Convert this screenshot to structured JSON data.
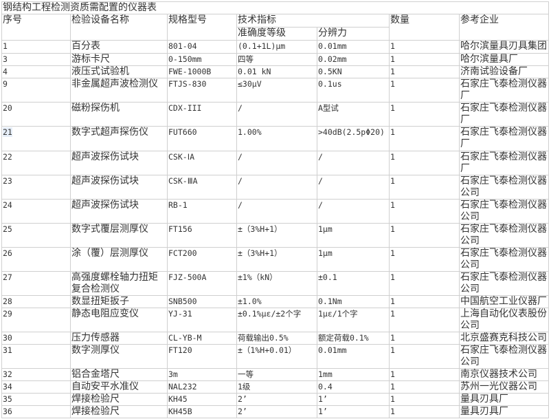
{
  "title": "钢结构工程检测资质需配置的仪器表",
  "headers": {
    "seq": "序号",
    "name": "检验设备名称",
    "model": "规格型号",
    "tech": "技术指标",
    "accuracy": "准确度等级",
    "resolution": "分辨力",
    "qty": "数量",
    "company": "参考企业"
  },
  "rows": [
    {
      "seq": "1",
      "name": "百分表",
      "model": "801-04",
      "accuracy": "(0.1+1L)μm",
      "resolution": "0.01mm",
      "qty": "1",
      "company": "哈尔滨量具刃具集团",
      "h": 18
    },
    {
      "seq": "3",
      "name": "游标卡尺",
      "model": "0-150mm",
      "accuracy": "四等",
      "resolution": "0.02mm",
      "qty": "1",
      "company": "哈尔滨量具厂",
      "h": 17
    },
    {
      "seq": "4",
      "name": "液压式试验机",
      "model": "FWE-1000B",
      "accuracy": "0.01 kN",
      "resolution": "0.5KN",
      "qty": "1",
      "company": "济南试验设备厂",
      "h": 17
    },
    {
      "seq": "9",
      "name": "非金属超声波检测仪",
      "model": "FTJS-830",
      "accuracy": "≤30μV",
      "resolution": "0.1us",
      "qty": "1",
      "company": "石家庄飞泰检测仪器厂",
      "h": 33
    },
    {
      "seq": "20",
      "name": "磁粉探伤机",
      "model": "CDX-III",
      "accuracy": "/",
      "resolution": "A型试",
      "qty": "1",
      "company": "石家庄飞泰检测仪器厂",
      "h": 33
    },
    {
      "seq": "21",
      "name": "数字式超声探伤仪",
      "model": "FUT660",
      "accuracy": "1.00%",
      "resolution": ">40dB(2.5pΦ20)",
      "qty": "1",
      "company": "石家庄飞泰检测仪器厂",
      "h": 35,
      "highlight": true
    },
    {
      "seq": "22",
      "name": "超声波探伤试块",
      "model": "CSK-ⅠA",
      "accuracy": "/",
      "resolution": "/",
      "qty": "1",
      "company": "石家庄飞泰检测仪器厂",
      "h": 34
    },
    {
      "seq": "23",
      "name": "超声波探伤试块",
      "model": "CSK-ⅢA",
      "accuracy": "/",
      "resolution": "/",
      "qty": "1",
      "company": "石家庄飞泰检测仪器公司",
      "h": 34
    },
    {
      "seq": "24",
      "name": "超声波探伤试块",
      "model": "RB-1",
      "accuracy": "/",
      "resolution": "/",
      "qty": "1",
      "company": "石家庄飞泰检测仪器公司",
      "h": 34
    },
    {
      "seq": "25",
      "name": "数字式覆层测厚仪",
      "model": "FT156",
      "accuracy": "±（3%H+1）",
      "resolution": "1μm",
      "qty": "1",
      "company": "石家庄飞泰检测仪器公司",
      "h": 34
    },
    {
      "seq": "26",
      "name": "涂（覆）层测厚仪",
      "model": "FCT200",
      "accuracy": "±（3%H+1）",
      "resolution": "1μm",
      "qty": "1",
      "company": "石家庄飞泰检测仪器公司",
      "h": 34
    },
    {
      "seq": "27",
      "name": "高强度螺栓轴力扭矩复合检测仪",
      "model": "FJZ-500A",
      "accuracy": "±1%（kN）",
      "resolution": "±0.1",
      "qty": "1",
      "company": "石家庄飞泰检测仪器公司",
      "h": 33
    },
    {
      "seq": "28",
      "name": "数显扭矩扳子",
      "model": "SNB500",
      "accuracy": "±1.0%",
      "resolution": "0.1Nm",
      "qty": "1",
      "company": "中国航空工业仪器厂",
      "h": 17
    },
    {
      "seq": "29",
      "name": "静态电阻应变仪",
      "model": "YJ-31",
      "accuracy": "±0.1%με/±2个字",
      "resolution": "1με/1个字",
      "qty": "1",
      "company": "上海自动化仪表股份公司",
      "h": 34
    },
    {
      "seq": "30",
      "name": "压力传感器",
      "model": "CL-YB-M",
      "accuracy": "荷载输出0.5%",
      "resolution": "额定荷载0.1%",
      "qty": "1",
      "company": "北京盛赛克科技公司",
      "h": 17
    },
    {
      "seq": "31",
      "name": "数字测厚仪",
      "model": "FT120",
      "accuracy": "±（1%H+0.01）",
      "resolution": "0.01mm",
      "qty": "1",
      "company": "石家庄飞泰检测仪器公司",
      "h": 33
    },
    {
      "seq": "32",
      "name": "铝合金塔尺",
      "model": "3m",
      "accuracy": "一等",
      "resolution": "1mm",
      "qty": "1",
      "company": "南京仪器技术公司",
      "h": 17
    },
    {
      "seq": "34",
      "name": "自动安平水准仪",
      "model": "NAL232",
      "accuracy": "1级",
      "resolution": "0.4",
      "qty": "1",
      "company": "苏州一光仪器公司",
      "h": 17
    },
    {
      "seq": "35",
      "name": "焊接检验尺",
      "model": "KH45",
      "accuracy": "2’",
      "resolution": "1’",
      "qty": "1",
      "company": "量具刃具厂",
      "h": 17
    },
    {
      "seq": "36",
      "name": "焊接检验尺",
      "model": "KH45B",
      "accuracy": "2’",
      "resolution": "1’",
      "qty": "1",
      "company": "量具刃具厂",
      "h": 17
    }
  ]
}
